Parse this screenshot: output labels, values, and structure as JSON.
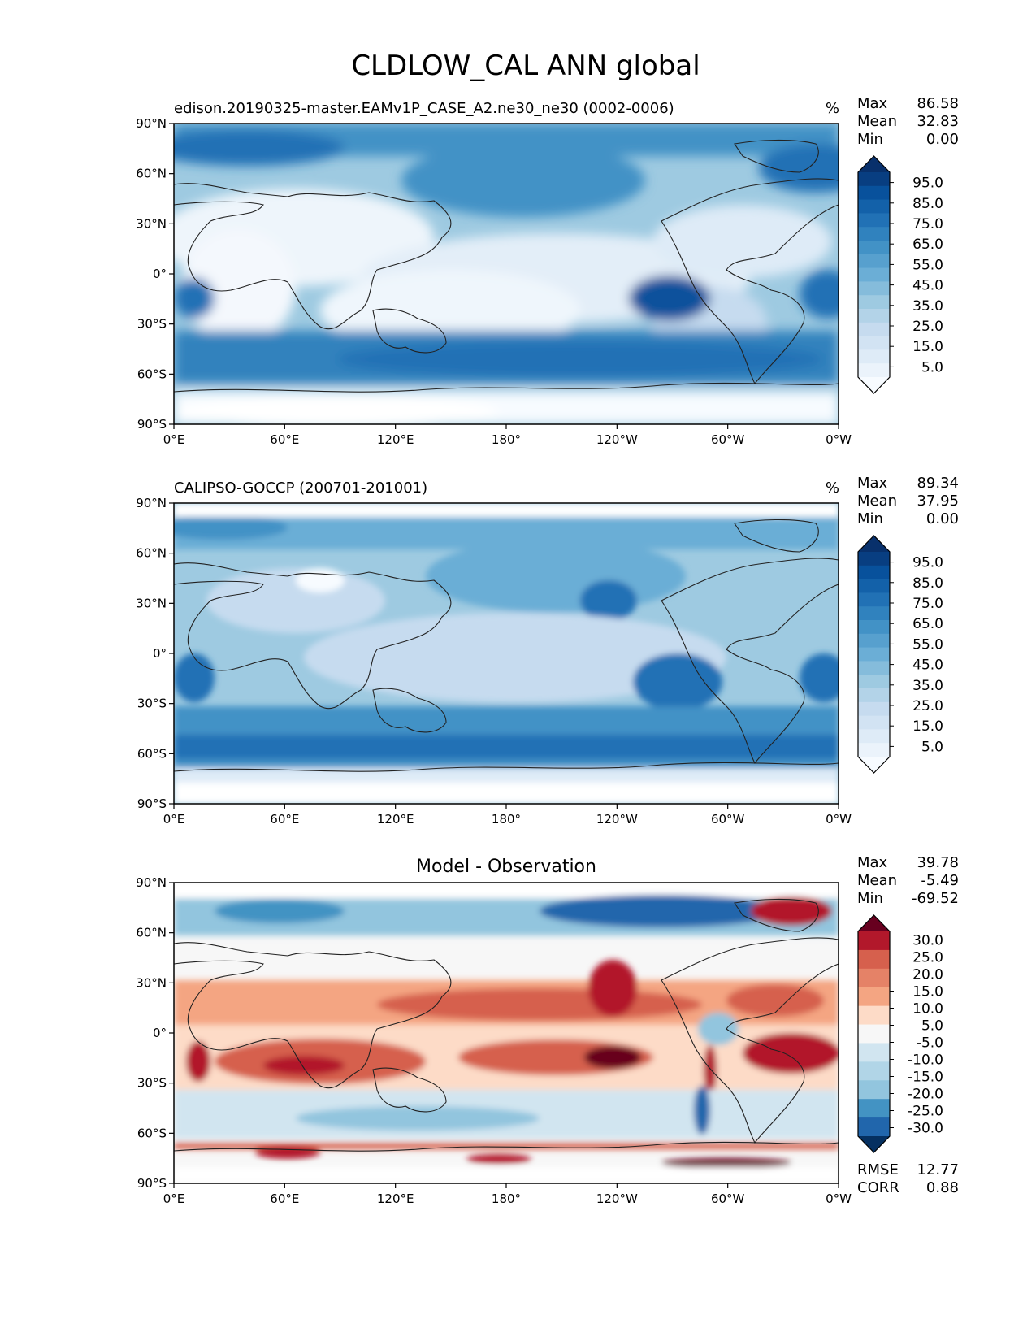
{
  "figure_title": "CLDLOW_CAL ANN global",
  "axes": {
    "lat_ticks": [
      "90°N",
      "60°N",
      "30°N",
      "0°",
      "30°S",
      "60°S",
      "90°S"
    ],
    "lon_ticks": [
      "0°E",
      "60°E",
      "120°E",
      "180°",
      "120°W",
      "60°W",
      "0°W"
    ]
  },
  "chart_data": [
    {
      "type": "heatmap",
      "title": "edison.20190325-master.EAMv1P_CASE_A2.ne30_ne30 (0002-0006)",
      "units": "%",
      "stats": [
        {
          "label": "Max",
          "value": "86.58"
        },
        {
          "label": "Mean",
          "value": "32.83"
        },
        {
          "label": "Min",
          "value": "0.00"
        }
      ],
      "colorbar": {
        "levels": [
          0,
          5,
          10,
          15,
          20,
          25,
          30,
          35,
          40,
          45,
          50,
          55,
          60,
          65,
          70,
          75,
          80,
          85,
          90,
          95,
          100
        ],
        "tick_labels": [
          "95.0",
          "85.0",
          "75.0",
          "65.0",
          "55.0",
          "45.0",
          "35.0",
          "25.0",
          "15.0",
          "5.0"
        ],
        "colormap": "Blues"
      },
      "xlim": [
        0,
        360
      ],
      "ylim": [
        -90,
        90
      ]
    },
    {
      "type": "heatmap",
      "title": "CALIPSO-GOCCP (200701-201001)",
      "units": "%",
      "stats": [
        {
          "label": "Max",
          "value": "89.34"
        },
        {
          "label": "Mean",
          "value": "37.95"
        },
        {
          "label": "Min",
          "value": "0.00"
        }
      ],
      "colorbar": {
        "levels": [
          0,
          5,
          10,
          15,
          20,
          25,
          30,
          35,
          40,
          45,
          50,
          55,
          60,
          65,
          70,
          75,
          80,
          85,
          90,
          95,
          100
        ],
        "tick_labels": [
          "95.0",
          "85.0",
          "75.0",
          "65.0",
          "55.0",
          "45.0",
          "35.0",
          "25.0",
          "15.0",
          "5.0"
        ],
        "colormap": "Blues"
      },
      "xlim": [
        0,
        360
      ],
      "ylim": [
        -90,
        90
      ]
    },
    {
      "type": "heatmap",
      "title": "Model - Observation",
      "units": "",
      "stats": [
        {
          "label": "Max",
          "value": "39.78"
        },
        {
          "label": "Mean",
          "value": "-5.49"
        },
        {
          "label": "Min",
          "value": "-69.52"
        }
      ],
      "metrics": [
        {
          "label": "RMSE",
          "value": "12.77"
        },
        {
          "label": "CORR",
          "value": "0.88"
        }
      ],
      "colorbar": {
        "levels": [
          -35,
          -30,
          -25,
          -20,
          -15,
          -10,
          -5,
          5,
          10,
          15,
          20,
          25,
          30,
          35
        ],
        "tick_labels": [
          "30.0",
          "25.0",
          "20.0",
          "15.0",
          "10.0",
          "5.0",
          "-5.0",
          "-10.0",
          "-15.0",
          "-20.0",
          "-25.0",
          "-30.0"
        ],
        "colormap": "RdBu"
      },
      "xlim": [
        0,
        360
      ],
      "ylim": [
        -90,
        90
      ]
    }
  ]
}
